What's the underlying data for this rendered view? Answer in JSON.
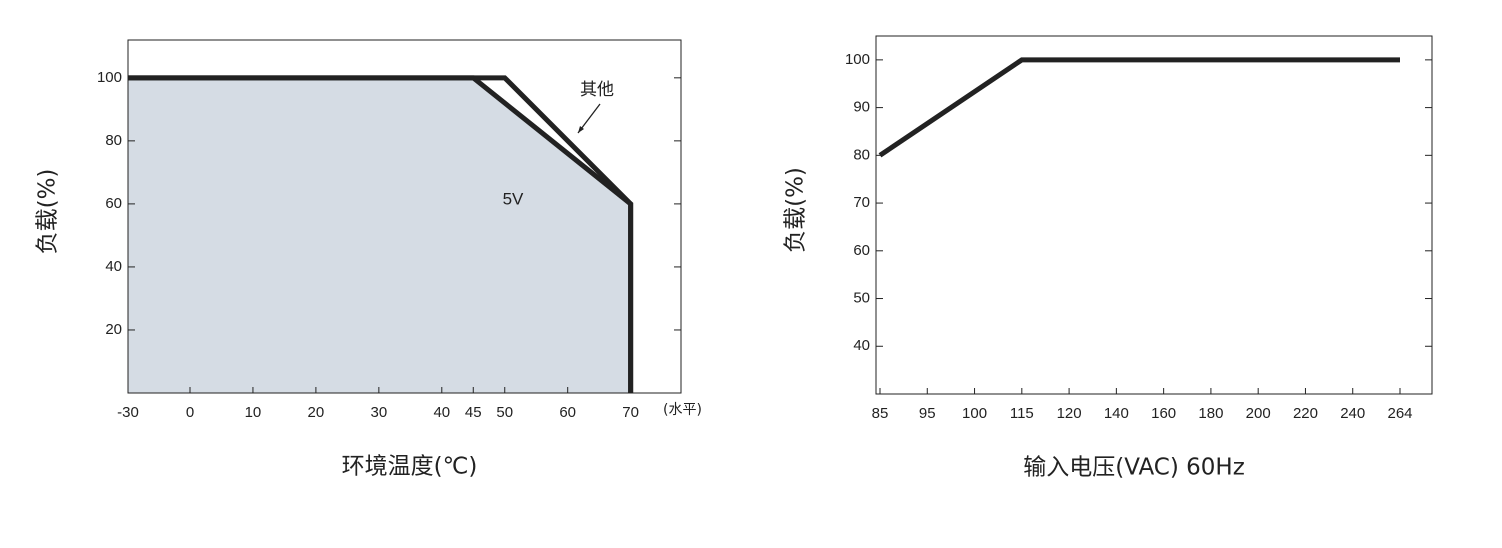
{
  "chart_data": [
    {
      "type": "line",
      "ylabel": "负载(%)",
      "xlabel": "环境温度(℃)",
      "x_unit_note": "(水平)",
      "xlim": [
        -30,
        78
      ],
      "xticks": [
        -30,
        0,
        10,
        20,
        30,
        40,
        45,
        50,
        60,
        70
      ],
      "ylim": [
        0,
        112
      ],
      "yticks": [
        20,
        40,
        60,
        80,
        100
      ],
      "area_color": "#d5dce4",
      "series": [
        {
          "name": "其他",
          "color": "#222222",
          "x": [
            -30,
            50,
            70,
            70
          ],
          "values": [
            100,
            100,
            60,
            0
          ]
        },
        {
          "name": "5V",
          "color": "#222222",
          "x": [
            -30,
            45,
            70,
            70
          ],
          "values": [
            100,
            100,
            60,
            0
          ],
          "fill": true
        }
      ]
    },
    {
      "type": "line",
      "ylabel": "负载(%)",
      "xlabel": "输入电压(VAC) 60Hz",
      "xlim": [
        84,
        280
      ],
      "xticks": [
        85,
        95,
        100,
        115,
        120,
        140,
        160,
        180,
        200,
        220,
        240,
        264
      ],
      "ylim": [
        30,
        105
      ],
      "yticks": [
        40,
        50,
        60,
        70,
        80,
        90,
        100
      ],
      "series": [
        {
          "name": "",
          "color": "#222222",
          "x": [
            85,
            115,
            264
          ],
          "values": [
            80,
            100,
            100
          ]
        }
      ]
    }
  ]
}
